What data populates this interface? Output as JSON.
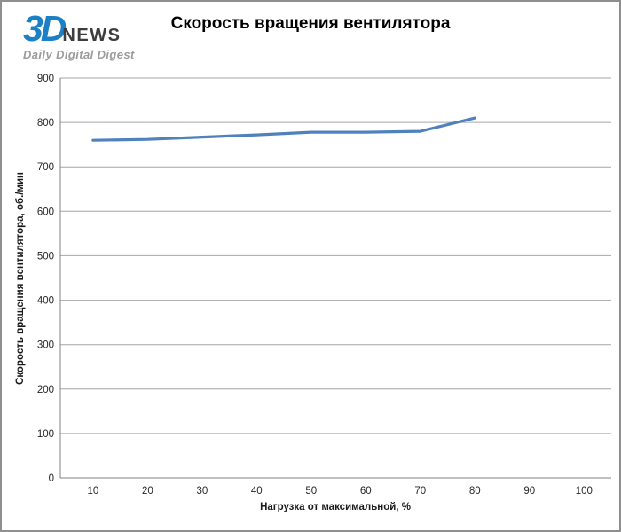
{
  "header": {
    "logo": {
      "brand_3d": "3D",
      "brand_news": "NEWS",
      "tagline": "Daily Digital Digest"
    },
    "title": "Скорость вращения вентилятора"
  },
  "colors": {
    "series_line": "#4f81bd",
    "gridline": "#a6a6a6",
    "axis_line": "#808080",
    "frame_border": "#8f8f8f",
    "tick_text": "#262626",
    "logo_blue": "#1c80c4",
    "logo_dark": "#3d3d3f",
    "logo_gray": "#9c9c9c"
  },
  "chart_data": {
    "type": "line",
    "title": "Скорость вращения вентилятора",
    "x": [
      10,
      20,
      30,
      40,
      50,
      60,
      70,
      80
    ],
    "series": [
      {
        "name": "Скорость вращения вентилятора, об./мин",
        "color": "#4f81bd",
        "values": [
          760,
          762,
          767,
          772,
          778,
          778,
          780,
          810
        ]
      }
    ],
    "xlabel": "Нагрузка от максимальной,  %",
    "ylabel": "Скорость вращения вентилятора, об./мин",
    "xticks": [
      10,
      20,
      30,
      40,
      50,
      60,
      70,
      80,
      90,
      100
    ],
    "yticks": [
      0,
      100,
      200,
      300,
      400,
      500,
      600,
      700,
      800,
      900
    ],
    "xlim": [
      4,
      105
    ],
    "ylim": [
      0,
      900
    ],
    "grid": "horizontal",
    "legend": "none"
  }
}
